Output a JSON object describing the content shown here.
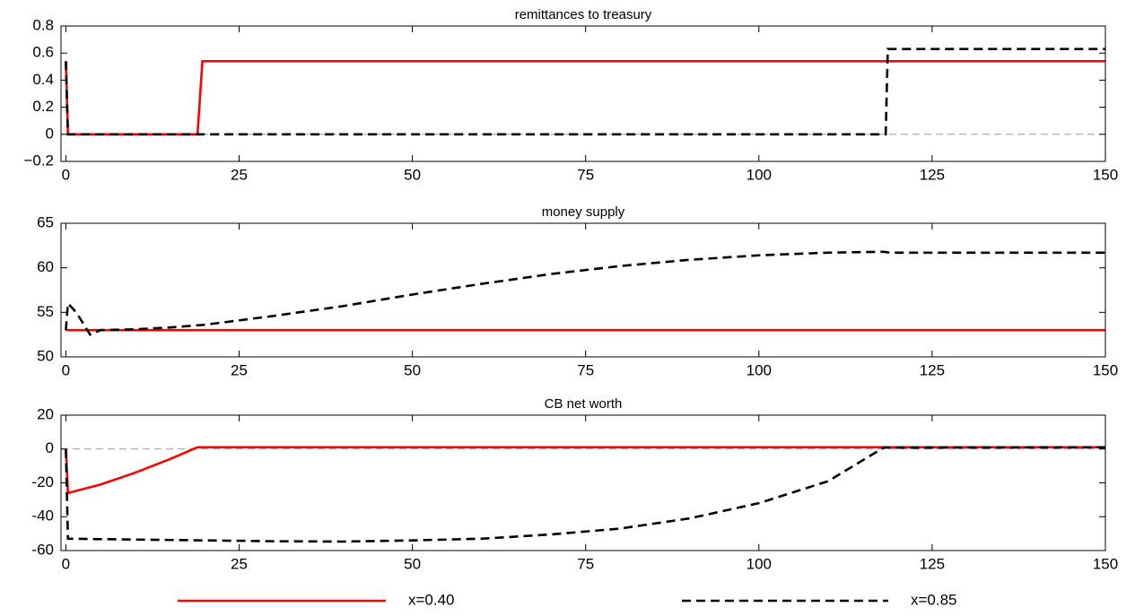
{
  "chart_data": [
    {
      "type": "line",
      "title": "remittances to treasury",
      "xlim": [
        -0.7,
        150
      ],
      "xticks": [
        0,
        25,
        50,
        75,
        100,
        125,
        150
      ],
      "ylim": [
        -0.2,
        0.8
      ],
      "yticks": [
        {
          "value": -0.2,
          "label": "−0.2"
        },
        0,
        0.2,
        0.4,
        0.6,
        0.8
      ],
      "hline": 0,
      "series": [
        {
          "name": "x=0.40",
          "color": "#ff0000",
          "dash": false,
          "x": [
            0,
            0.3,
            19,
            19.7,
            150
          ],
          "values": [
            0.54,
            0,
            0,
            0.54,
            0.54
          ]
        },
        {
          "name": "x=0.85",
          "color": "#000000",
          "dash": true,
          "x": [
            0,
            0.3,
            118.3,
            118.6,
            150
          ],
          "values": [
            0.54,
            0,
            0,
            0.63,
            0.63
          ]
        }
      ]
    },
    {
      "type": "line",
      "title": "money supply",
      "xlim": [
        -0.7,
        150
      ],
      "xticks": [
        0,
        25,
        50,
        75,
        100,
        125,
        150
      ],
      "ylim": [
        50,
        65
      ],
      "yticks": [
        50,
        55,
        60,
        65
      ],
      "series": [
        {
          "name": "x=0.40",
          "color": "#ff0000",
          "dash": false,
          "x": [
            0,
            150
          ],
          "values": [
            53,
            53
          ]
        },
        {
          "name": "x=0.85",
          "color": "#000000",
          "dash": true,
          "x": [
            0,
            0.3,
            1.5,
            3.5,
            5,
            10,
            15,
            20,
            25,
            30,
            40,
            50,
            60,
            70,
            80,
            90,
            100,
            110,
            118,
            119,
            150
          ],
          "values": [
            53,
            56,
            55,
            52.5,
            53,
            53.1,
            53.3,
            53.6,
            54.1,
            54.6,
            55.7,
            57,
            58.2,
            59.3,
            60.2,
            60.9,
            61.4,
            61.7,
            61.8,
            61.7,
            61.7
          ]
        }
      ]
    },
    {
      "type": "line",
      "title": "CB net worth",
      "xlim": [
        -0.7,
        150
      ],
      "xticks": [
        0,
        25,
        50,
        75,
        100,
        125,
        150
      ],
      "ylim": [
        -60,
        20
      ],
      "yticks": [
        -60,
        -40,
        -20,
        0,
        20
      ],
      "hline": 0,
      "series": [
        {
          "name": "x=0.40",
          "color": "#ff0000",
          "dash": false,
          "x": [
            0,
            0.3,
            5,
            10,
            15,
            19,
            150
          ],
          "values": [
            0,
            -26,
            -21,
            -14,
            -6,
            1,
            1
          ]
        },
        {
          "name": "x=0.85",
          "color": "#000000",
          "dash": true,
          "x": [
            0,
            0.3,
            10,
            20,
            30,
            40,
            50,
            60,
            70,
            80,
            90,
            100,
            110,
            118,
            150
          ],
          "values": [
            0,
            -53,
            -53.5,
            -54,
            -54.5,
            -54.7,
            -54,
            -53,
            -50.5,
            -47,
            -41,
            -32,
            -19,
            0.8,
            1
          ]
        }
      ]
    }
  ]
}
